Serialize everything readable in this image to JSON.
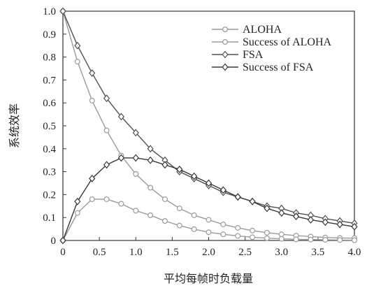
{
  "chart_data": {
    "type": "line",
    "title": "",
    "xlabel": "平均每帧时负载量",
    "ylabel": "系统效率",
    "xlim": [
      0,
      4.0
    ],
    "ylim": [
      0,
      1.0
    ],
    "x_ticks": [
      "0",
      "0.5",
      "1.0",
      "1.5",
      "2.0",
      "2.5",
      "3.0",
      "3.5",
      "4.0"
    ],
    "y_ticks": [
      "0",
      "0.1",
      "0.2",
      "0.3",
      "0.4",
      "0.5",
      "0.6",
      "0.7",
      "0.8",
      "0.9",
      "1.0"
    ],
    "grid": false,
    "legend_position": "top-right",
    "x": [
      0,
      0.2,
      0.4,
      0.6,
      0.8,
      1.0,
      1.2,
      1.4,
      1.6,
      1.8,
      2.0,
      2.2,
      2.4,
      2.6,
      2.8,
      3.0,
      3.2,
      3.4,
      3.6,
      3.8,
      4.0
    ],
    "series": [
      {
        "name": "ALOHA",
        "color": "#9a9a9a",
        "marker": "circle",
        "values": [
          1.0,
          0.78,
          0.61,
          0.48,
          0.37,
          0.29,
          0.23,
          0.18,
          0.14,
          0.11,
          0.09,
          0.07,
          0.055,
          0.043,
          0.034,
          0.027,
          0.021,
          0.017,
          0.013,
          0.011,
          0.01
        ]
      },
      {
        "name": "Success of ALOHA",
        "color": "#9a9a9a",
        "marker": "circle",
        "values": [
          0.0,
          0.12,
          0.18,
          0.18,
          0.16,
          0.13,
          0.11,
          0.085,
          0.065,
          0.049,
          0.036,
          0.027,
          0.02,
          0.014,
          0.01,
          0.007,
          0.005,
          0.004,
          0.003,
          0.002,
          0.001
        ]
      },
      {
        "name": "FSA",
        "color": "#505050",
        "marker": "diamond",
        "values": [
          1.0,
          0.85,
          0.73,
          0.62,
          0.54,
          0.47,
          0.4,
          0.35,
          0.3,
          0.27,
          0.24,
          0.21,
          0.19,
          0.17,
          0.15,
          0.14,
          0.12,
          0.11,
          0.095,
          0.085,
          0.075
        ]
      },
      {
        "name": "Success of FSA",
        "color": "#383838",
        "marker": "diamond",
        "values": [
          0.0,
          0.17,
          0.27,
          0.33,
          0.36,
          0.36,
          0.35,
          0.33,
          0.31,
          0.28,
          0.25,
          0.22,
          0.19,
          0.17,
          0.14,
          0.12,
          0.105,
          0.09,
          0.08,
          0.07,
          0.06
        ]
      }
    ]
  }
}
